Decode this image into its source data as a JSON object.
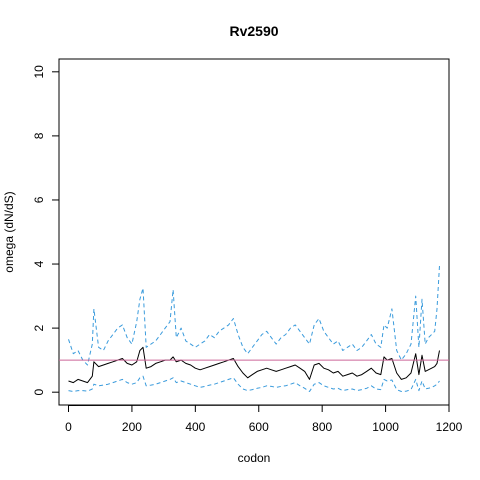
{
  "chart_data": {
    "type": "line",
    "title": "Rv2590",
    "xlabel": "codon",
    "ylabel": "omega (dN/dS)",
    "xlim": [
      -30,
      1200
    ],
    "ylim": [
      -0.4,
      10.4
    ],
    "x_ticks": [
      0,
      200,
      400,
      600,
      800,
      1000,
      1200
    ],
    "y_ticks": [
      0,
      2,
      4,
      6,
      8,
      10
    ],
    "grid": false,
    "legend": "none",
    "reference_line": {
      "y": 1.0,
      "color": "#cc6699"
    },
    "series": [
      {
        "role": "upper",
        "style": "dashed",
        "color": "#3a9bdc",
        "x": [
          0,
          15,
          30,
          45,
          60,
          75,
          80,
          95,
          110,
          125,
          140,
          155,
          170,
          185,
          200,
          215,
          225,
          235,
          245,
          260,
          275,
          290,
          305,
          320,
          330,
          340,
          355,
          370,
          385,
          400,
          415,
          430,
          445,
          460,
          475,
          490,
          505,
          520,
          535,
          550,
          565,
          580,
          595,
          610,
          625,
          640,
          655,
          670,
          685,
          700,
          715,
          730,
          745,
          760,
          775,
          790,
          805,
          820,
          835,
          850,
          865,
          880,
          895,
          910,
          925,
          940,
          955,
          970,
          985,
          995,
          1005,
          1020,
          1035,
          1050,
          1065,
          1080,
          1095,
          1105,
          1115,
          1125,
          1135,
          1145,
          1155,
          1162,
          1170
        ],
        "y": [
          1.65,
          1.2,
          1.3,
          1.0,
          0.85,
          1.5,
          2.6,
          1.4,
          1.3,
          1.6,
          1.8,
          2.0,
          2.1,
          1.7,
          1.5,
          2.2,
          2.9,
          3.25,
          1.4,
          1.5,
          1.6,
          1.8,
          2.0,
          2.2,
          3.2,
          1.7,
          2.0,
          1.6,
          1.5,
          1.4,
          1.5,
          1.6,
          1.8,
          1.7,
          1.9,
          2.0,
          2.1,
          2.3,
          1.8,
          1.4,
          1.2,
          1.4,
          1.6,
          1.8,
          1.9,
          1.7,
          1.5,
          1.7,
          1.8,
          2.0,
          2.1,
          1.9,
          1.7,
          1.5,
          2.1,
          2.3,
          1.9,
          1.7,
          1.5,
          1.6,
          1.3,
          1.4,
          1.5,
          1.3,
          1.4,
          1.6,
          1.8,
          1.5,
          1.4,
          2.1,
          2.0,
          2.6,
          1.3,
          1.0,
          1.2,
          1.5,
          3.0,
          1.4,
          2.9,
          1.5,
          1.7,
          1.8,
          1.9,
          2.6,
          3.95
        ]
      },
      {
        "role": "estimate",
        "style": "solid",
        "color": "#000000",
        "x": [
          0,
          15,
          30,
          45,
          60,
          75,
          80,
          95,
          110,
          125,
          140,
          155,
          170,
          185,
          200,
          215,
          225,
          235,
          245,
          260,
          275,
          290,
          305,
          320,
          330,
          340,
          355,
          370,
          385,
          400,
          415,
          430,
          445,
          460,
          475,
          490,
          505,
          520,
          535,
          550,
          565,
          580,
          595,
          610,
          625,
          640,
          655,
          670,
          685,
          700,
          715,
          730,
          745,
          760,
          775,
          790,
          805,
          820,
          835,
          850,
          865,
          880,
          895,
          910,
          925,
          940,
          955,
          970,
          985,
          995,
          1005,
          1020,
          1035,
          1050,
          1065,
          1080,
          1095,
          1105,
          1115,
          1125,
          1135,
          1145,
          1155,
          1162,
          1170
        ],
        "y": [
          0.35,
          0.3,
          0.4,
          0.35,
          0.3,
          0.5,
          0.95,
          0.8,
          0.85,
          0.9,
          0.95,
          1.0,
          1.05,
          0.9,
          0.85,
          0.95,
          1.3,
          1.4,
          0.75,
          0.8,
          0.9,
          0.95,
          1.0,
          1.0,
          1.1,
          0.95,
          1.0,
          0.9,
          0.85,
          0.75,
          0.7,
          0.75,
          0.8,
          0.85,
          0.9,
          0.95,
          1.0,
          1.05,
          0.8,
          0.6,
          0.45,
          0.55,
          0.65,
          0.7,
          0.75,
          0.7,
          0.65,
          0.7,
          0.75,
          0.8,
          0.85,
          0.75,
          0.65,
          0.4,
          0.85,
          0.9,
          0.75,
          0.7,
          0.6,
          0.65,
          0.5,
          0.55,
          0.6,
          0.5,
          0.55,
          0.65,
          0.75,
          0.6,
          0.55,
          1.1,
          1.0,
          1.05,
          0.6,
          0.4,
          0.45,
          0.6,
          1.2,
          0.55,
          1.15,
          0.65,
          0.7,
          0.75,
          0.8,
          0.9,
          1.3
        ]
      },
      {
        "role": "lower",
        "style": "dashed",
        "color": "#3a9bdc",
        "x": [
          0,
          15,
          30,
          45,
          60,
          75,
          80,
          95,
          110,
          125,
          140,
          155,
          170,
          185,
          200,
          215,
          225,
          235,
          245,
          260,
          275,
          290,
          305,
          320,
          330,
          340,
          355,
          370,
          385,
          400,
          415,
          430,
          445,
          460,
          475,
          490,
          505,
          520,
          535,
          550,
          565,
          580,
          595,
          610,
          625,
          640,
          655,
          670,
          685,
          700,
          715,
          730,
          745,
          760,
          775,
          790,
          805,
          820,
          835,
          850,
          865,
          880,
          895,
          910,
          925,
          940,
          955,
          970,
          985,
          995,
          1005,
          1020,
          1035,
          1050,
          1065,
          1080,
          1095,
          1105,
          1115,
          1125,
          1135,
          1145,
          1155,
          1162,
          1170
        ],
        "y": [
          0.05,
          0.02,
          0.05,
          0.05,
          0.03,
          0.1,
          0.25,
          0.2,
          0.22,
          0.25,
          0.3,
          0.35,
          0.4,
          0.3,
          0.25,
          0.3,
          0.45,
          0.5,
          0.2,
          0.22,
          0.25,
          0.3,
          0.35,
          0.4,
          0.45,
          0.3,
          0.35,
          0.3,
          0.25,
          0.2,
          0.15,
          0.18,
          0.22,
          0.25,
          0.3,
          0.35,
          0.4,
          0.45,
          0.25,
          0.1,
          0.05,
          0.08,
          0.12,
          0.15,
          0.2,
          0.18,
          0.15,
          0.18,
          0.2,
          0.25,
          0.3,
          0.2,
          0.12,
          0.02,
          0.25,
          0.3,
          0.2,
          0.15,
          0.1,
          0.12,
          0.05,
          0.08,
          0.1,
          0.05,
          0.08,
          0.12,
          0.2,
          0.1,
          0.08,
          0.4,
          0.35,
          0.38,
          0.08,
          0.02,
          0.03,
          0.08,
          0.4,
          0.05,
          0.35,
          0.1,
          0.12,
          0.15,
          0.2,
          0.25,
          0.35
        ]
      }
    ]
  }
}
